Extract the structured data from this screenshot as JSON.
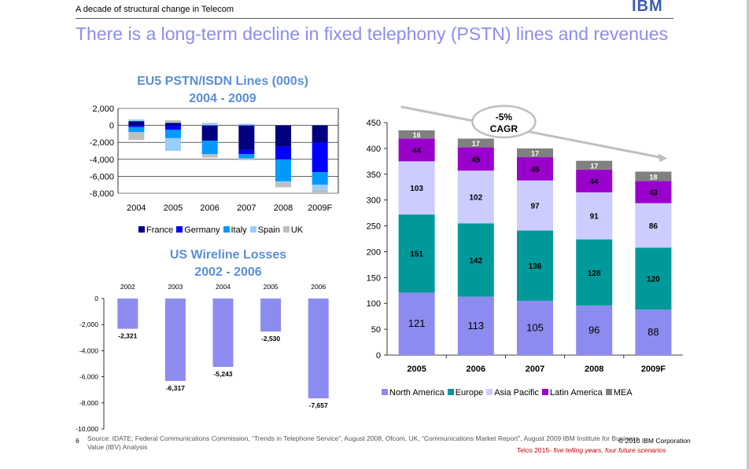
{
  "header": {
    "section_title": "A decade of structural change in Telecom",
    "logo_text": "IBM",
    "slide_title": "There is a long-term decline in fixed telephony (PSTN) lines and revenues"
  },
  "footer": {
    "page_number": "6",
    "source": "Source: IDATE; Federal Communications Commission, “Trends in Telephone Service”, August 2008, Ofcom, UK, “Communications Market Report”, August 2009 IBM Institute for Business Value (IBV) Analysis",
    "copyright": "© 2010 IBM Corporation",
    "tagline_prefix": "Telco 2015- ",
    "tagline_italic": "five telling years, four future scenarios"
  },
  "chart_data": [
    {
      "id": "eu5",
      "type": "bar",
      "stacked": true,
      "title_line1": "EU5 PSTN/ISDN Lines (000s)",
      "title_line2": "2004 - 2009",
      "categories": [
        "2004",
        "2005",
        "2006",
        "2007",
        "2008",
        "2009F"
      ],
      "ylim": [
        -8000,
        2000
      ],
      "yticks": [
        2000,
        0,
        -2000,
        -4000,
        -6000,
        -8000
      ],
      "ytick_labels": [
        "2,000",
        "0",
        "-2,000",
        "-4,000",
        "-6,000",
        "-8,000"
      ],
      "grid": true,
      "legend_position": "bottom",
      "series": [
        {
          "name": "France",
          "color": "#000080",
          "values": [
            500,
            300,
            -1800,
            -2900,
            -2500,
            -2000
          ]
        },
        {
          "name": "Germany",
          "color": "#0000ff",
          "values": [
            -200,
            -500,
            0,
            -500,
            -1500,
            -3500
          ]
        },
        {
          "name": "Italy",
          "color": "#0099ff",
          "values": [
            -600,
            -1000,
            -1600,
            -500,
            -2600,
            -1500
          ]
        },
        {
          "name": "Spain",
          "color": "#99ccff",
          "values": [
            200,
            -1500,
            300,
            200,
            -100,
            -600
          ]
        },
        {
          "name": "UK",
          "color": "#bfbfbf",
          "values": [
            -900,
            300,
            -400,
            -200,
            -600,
            -500
          ]
        }
      ]
    },
    {
      "id": "us",
      "type": "bar",
      "title_line1": "US Wireline Losses",
      "title_line2": "2002 - 2006",
      "categories": [
        "2002",
        "2003",
        "2004",
        "2005",
        "2006"
      ],
      "values": [
        -2321,
        -6317,
        -5243,
        -2530,
        -7657
      ],
      "value_labels": [
        "-2,321",
        "-6,317",
        "-5,243",
        "-2,530",
        "-7,657"
      ],
      "ylim": [
        -10000,
        0
      ],
      "yticks": [
        0,
        -2000,
        -4000,
        -6000,
        -8000,
        -10000
      ],
      "ytick_labels": [
        "0",
        "-2,000",
        "-4,000",
        "-6,000",
        "-8,000",
        "-10,000"
      ],
      "grid": false,
      "color": "#8c8cf0"
    },
    {
      "id": "global",
      "type": "bar",
      "stacked": true,
      "categories": [
        "2005",
        "2006",
        "2007",
        "2008",
        "2009F"
      ],
      "ylim": [
        0,
        450
      ],
      "yticks": [
        0,
        50,
        100,
        150,
        200,
        250,
        300,
        350,
        400,
        450
      ],
      "grid": false,
      "legend_position": "bottom",
      "annotation_line1": "-5%",
      "annotation_line2": "CAGR",
      "series": [
        {
          "name": "North America",
          "color": "#8c8cf0",
          "label_color": "#000000",
          "values": [
            121,
            113,
            105,
            96,
            88
          ]
        },
        {
          "name": "Europe",
          "color": "#009999",
          "label_color": "#000000",
          "values": [
            151,
            142,
            136,
            128,
            120
          ]
        },
        {
          "name": "Asia Pacific",
          "color": "#ccccff",
          "label_color": "#000000",
          "values": [
            103,
            102,
            97,
            91,
            86
          ]
        },
        {
          "name": "Latin America",
          "color": "#9900cc",
          "label_color": "#000000",
          "values": [
            44,
            45,
            45,
            44,
            43
          ]
        },
        {
          "name": "MEA",
          "color": "#808080",
          "label_color": "#ffffff",
          "values": [
            16,
            17,
            17,
            17,
            18
          ]
        }
      ]
    }
  ]
}
